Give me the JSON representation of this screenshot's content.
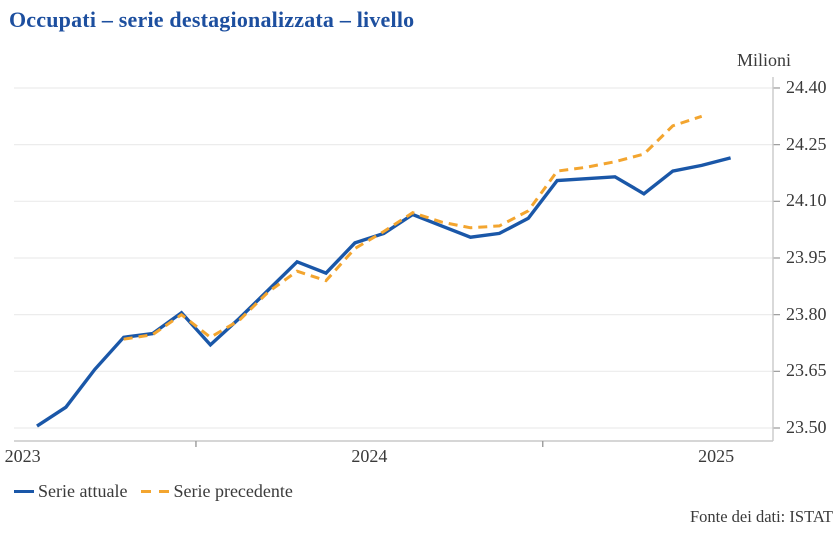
{
  "title": "Occupati – serie destagionalizzata – livello",
  "unit_label": "Milioni",
  "source_note": "Fonte dei dati: ISTAT",
  "legend": [
    {
      "label": "Serie attuale"
    },
    {
      "label": "Serie precedente"
    }
  ],
  "colors": {
    "title": "#1d4f9f",
    "serie_attuale": "#1a57a8",
    "serie_precedente": "#f3a52f",
    "grid": "#ececec",
    "axis": "#c9c9c9",
    "tick": "#9a9a9a",
    "text": "#3a3a3a"
  },
  "chart_data": {
    "type": "line",
    "title": "Occupati – serie destagionalizzata – livello",
    "ylabel": "Milioni",
    "ylim": [
      23.5,
      24.4
    ],
    "yticks": [
      23.5,
      23.65,
      23.8,
      23.95,
      24.1,
      24.25,
      24.4
    ],
    "ytick_labels": [
      "23.50",
      "23.65",
      "23.80",
      "23.95",
      "24.10",
      "24.25",
      "24.40"
    ],
    "x_unit": "month",
    "x_start": "2023-01",
    "xtick_year_labels": [
      {
        "label": "2023",
        "month_index": 0
      },
      {
        "label": "2024",
        "month_index": 12
      },
      {
        "label": "2025",
        "month_index": 24
      }
    ],
    "xtick_minor_month_indices": [
      6,
      18
    ],
    "grid": true,
    "legend_position": "bottom-left",
    "series": [
      {
        "name": "Serie attuale",
        "style": "solid",
        "color": "#1a57a8",
        "start_month_index": 0,
        "months": [
          "2023-01",
          "2023-02",
          "2023-03",
          "2023-04",
          "2023-05",
          "2023-06",
          "2023-07",
          "2023-08",
          "2023-09",
          "2023-10",
          "2023-11",
          "2023-12",
          "2024-01",
          "2024-02",
          "2024-03",
          "2024-04",
          "2024-05",
          "2024-06",
          "2024-07",
          "2024-08",
          "2024-09",
          "2024-10",
          "2024-11",
          "2024-12",
          "2025-01"
        ],
        "values": [
          23.505,
          23.555,
          23.655,
          23.74,
          23.75,
          23.805,
          23.72,
          23.79,
          23.865,
          23.94,
          23.91,
          23.99,
          24.015,
          24.065,
          24.035,
          24.005,
          24.015,
          24.055,
          24.155,
          24.16,
          24.165,
          24.12,
          24.18,
          24.195,
          24.215
        ]
      },
      {
        "name": "Serie precedente",
        "style": "dashed",
        "color": "#f3a52f",
        "start_month_index": 3,
        "months": [
          "2023-04",
          "2023-05",
          "2023-06",
          "2023-07",
          "2023-08",
          "2023-09",
          "2023-10",
          "2023-11",
          "2023-12",
          "2024-01",
          "2024-02",
          "2024-03",
          "2024-04",
          "2024-05",
          "2024-06",
          "2024-07",
          "2024-08",
          "2024-09",
          "2024-10",
          "2024-11",
          "2024-12"
        ],
        "values": [
          23.735,
          23.747,
          23.8,
          23.74,
          23.785,
          23.86,
          23.915,
          23.89,
          23.975,
          24.02,
          24.07,
          24.045,
          24.03,
          24.035,
          24.075,
          24.18,
          24.19,
          24.205,
          24.225,
          24.3,
          24.325
        ]
      }
    ]
  }
}
